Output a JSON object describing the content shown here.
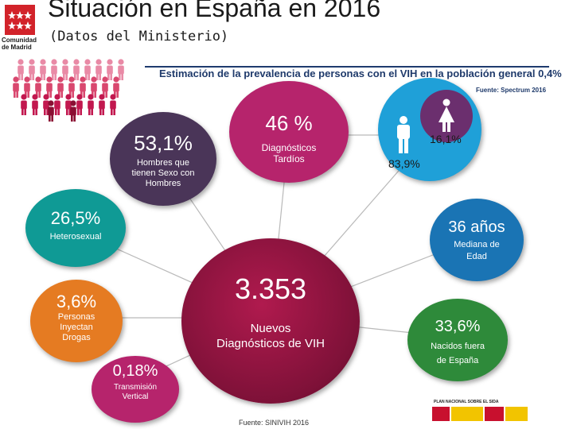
{
  "header": {
    "title": "Situación en España en 2016",
    "subtitle": "(Datos del Ministerio)",
    "logo_text_line1": "Comunidad",
    "logo_text_line2": "de Madrid"
  },
  "prevalence": {
    "text": "Estimación de la prevalencia de personas con el VIH en la población general 0,4%",
    "source": "Fuente: Spectrum 2016"
  },
  "gender": {
    "men_pct": "83,9%",
    "women_pct": "16,1%"
  },
  "stats": {
    "hsh": {
      "value": "53,1%",
      "label_1": "Hombres que",
      "label_2": "tienen Sexo con",
      "label_3": "Hombres"
    },
    "late": {
      "value": "46 %",
      "label_1": "Diagnósticos",
      "label_2": "Tardíos"
    },
    "hetero": {
      "value": "26,5%",
      "label_1": "Heterosexual"
    },
    "drugs": {
      "value": "3,6%",
      "label_1": "Personas",
      "label_2": "Inyectan",
      "label_3": "Drogas"
    },
    "vertical": {
      "value": "0,18%",
      "label_1": "Transmisión",
      "label_2": "Vertical"
    },
    "new_dx": {
      "value": "3.353",
      "label_1": "Nuevos",
      "label_2": "Diagnósticos de VIH"
    },
    "age": {
      "value": "36 años",
      "label_1": "Mediana de",
      "label_2": "Edad"
    },
    "foreign": {
      "value": "33,6%",
      "label_1": "Nacidos fuera",
      "label_2": "de España"
    }
  },
  "footer": {
    "source": "Fuente: SINIVIH 2016",
    "plan": "PLAN NACIONAL SOBRE EL SIDA"
  },
  "colors": {
    "purple_dark": "#4a3558",
    "magenta": "#b6246c",
    "teal": "#0f9a95",
    "orange": "#e57b22",
    "wine": "#7e1138",
    "blue": "#1a74b4",
    "green": "#2e8a3a",
    "cyan": "#1fa0d8",
    "navy": "#1f3a6b"
  }
}
